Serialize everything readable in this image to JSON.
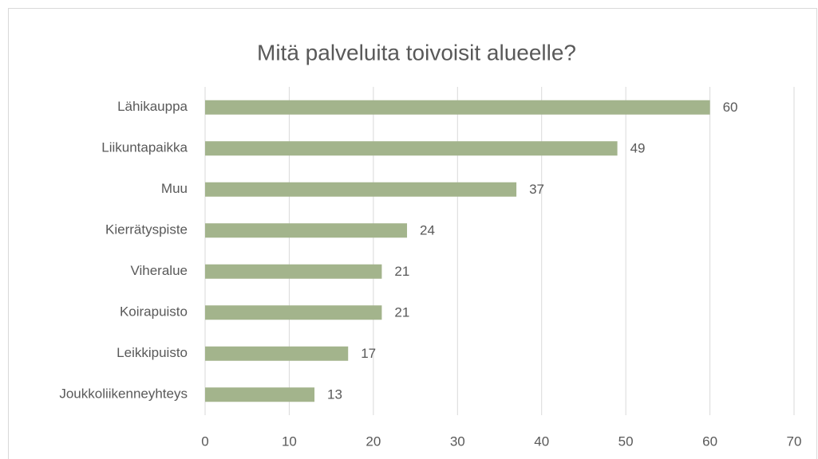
{
  "chart_data": {
    "type": "bar",
    "orientation": "horizontal",
    "title": "Mitä palveluita toivoisit alueelle?",
    "categories": [
      "Lähikauppa",
      "Liikuntapaikka",
      "Muu",
      "Kierrätyspiste",
      "Viheralue",
      "Koirapuisto",
      "Leikkipuisto",
      "Joukkoliikenneyhteys"
    ],
    "values": [
      60,
      49,
      37,
      24,
      21,
      21,
      17,
      13
    ],
    "color": "#a3b48c",
    "xlim": [
      0,
      70
    ],
    "xticks": [
      0,
      10,
      20,
      30,
      40,
      50,
      60,
      70
    ],
    "grid": true
  }
}
